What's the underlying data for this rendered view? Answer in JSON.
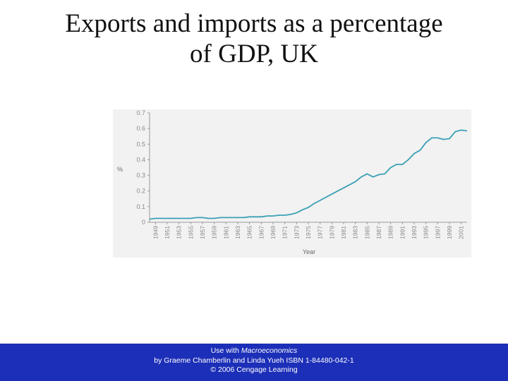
{
  "slide": {
    "title_line1": "Exports and imports as a percentage",
    "title_line2": "of GDP, UK"
  },
  "footer": {
    "line1_prefix": "Use with ",
    "line1_book": "Macroeconomics",
    "line2": "by Graeme Chamberlin and Linda Yueh ISBN 1-84480-042-1",
    "line3": "© 2006 Cengage Learning"
  },
  "colors": {
    "line": "#3aa0b4",
    "background": "#ffffff",
    "plot_background": "#f2f2f2",
    "footer_bg": "#1c2fb8"
  },
  "chart_data": {
    "type": "line",
    "title": "",
    "xlabel": "Year",
    "ylabel": "%",
    "ylim": [
      0,
      0.7
    ],
    "yticks": [
      "0",
      "0.1",
      "0.2",
      "0.3",
      "0.4",
      "0.5",
      "0.6",
      "0.7"
    ],
    "xticks": [
      "1949",
      "1951",
      "1953",
      "1955",
      "1957",
      "1959",
      "1961",
      "1963",
      "1965",
      "1967",
      "1969",
      "1971",
      "1973",
      "1975",
      "1977",
      "1979",
      "1981",
      "1983",
      "1985",
      "1987",
      "1989",
      "1991",
      "1993",
      "1995",
      "1997",
      "1999",
      "2001"
    ],
    "grid": false,
    "legend": "none",
    "series": [
      {
        "x": [
          1948,
          1949,
          1950,
          1951,
          1952,
          1953,
          1954,
          1955,
          1956,
          1957,
          1958,
          1959,
          1960,
          1961,
          1962,
          1963,
          1964,
          1965,
          1966,
          1967,
          1968,
          1969,
          1970,
          1971,
          1972,
          1973,
          1974,
          1975,
          1976,
          1977,
          1978,
          1979,
          1980,
          1981,
          1982,
          1983,
          1984,
          1985,
          1986,
          1987,
          1988,
          1989,
          1990,
          1991,
          1992,
          1993,
          1994,
          1995,
          1996,
          1997,
          1998,
          1999,
          2000,
          2001,
          2002
        ],
        "y": [
          0.02,
          0.025,
          0.025,
          0.025,
          0.025,
          0.025,
          0.025,
          0.025,
          0.03,
          0.03,
          0.025,
          0.025,
          0.03,
          0.03,
          0.03,
          0.03,
          0.03,
          0.035,
          0.035,
          0.035,
          0.04,
          0.04,
          0.045,
          0.045,
          0.05,
          0.06,
          0.08,
          0.095,
          0.12,
          0.14,
          0.16,
          0.18,
          0.2,
          0.22,
          0.24,
          0.26,
          0.29,
          0.31,
          0.29,
          0.305,
          0.31,
          0.35,
          0.37,
          0.37,
          0.4,
          0.44,
          0.46,
          0.51,
          0.54,
          0.54,
          0.53,
          0.535,
          0.58,
          0.59,
          0.585
        ]
      }
    ]
  }
}
